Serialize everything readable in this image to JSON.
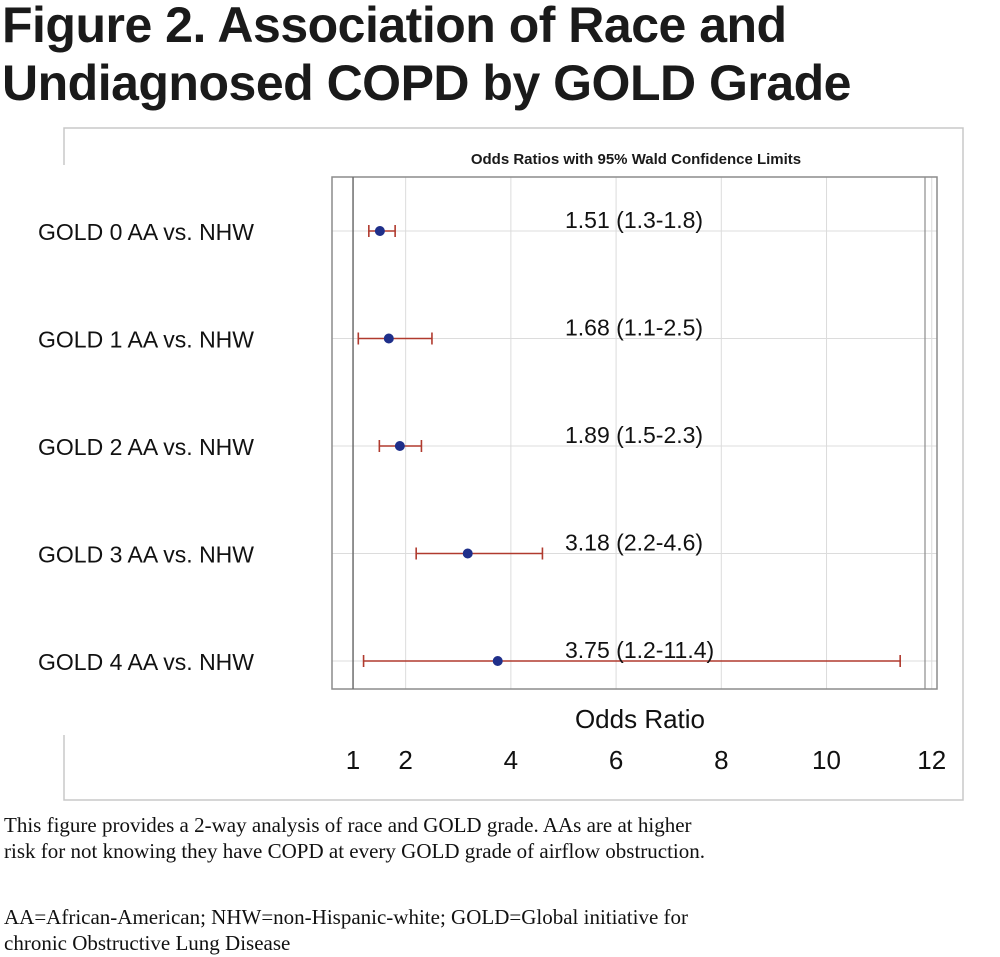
{
  "figure": {
    "title_line1": "Figure 2. Association of Race and",
    "title_line2": "Undiagnosed COPD by GOLD Grade",
    "caption_line1": "This figure provides a 2-way analysis of race and GOLD grade.  AAs are at higher",
    "caption_line2": "risk for not knowing they have COPD at every GOLD grade of airflow obstruction.",
    "abbrev_line1": "AA=African-American; NHW=non-Hispanic-white; GOLD=Global initiative for",
    "abbrev_line2": "chronic Obstructive Lung Disease"
  },
  "chart_data": {
    "type": "forest",
    "title": "Odds Ratios with 95% Wald Confidence Limits",
    "xlabel": "Odds Ratio",
    "x_ticks": [
      1,
      2,
      4,
      6,
      8,
      10,
      12
    ],
    "xlim": [
      0.6,
      12.1
    ],
    "reference_line": 1,
    "grid": true,
    "rows": [
      {
        "label": "GOLD 0 AA vs. NHW",
        "or": 1.51,
        "lo": 1.3,
        "hi": 1.8,
        "annotation": "1.51  (1.3-1.8)"
      },
      {
        "label": "GOLD 1 AA vs. NHW",
        "or": 1.68,
        "lo": 1.1,
        "hi": 2.5,
        "annotation": "1.68  (1.1-2.5)"
      },
      {
        "label": "GOLD 2 AA vs. NHW",
        "or": 1.89,
        "lo": 1.5,
        "hi": 2.3,
        "annotation": "1.89  (1.5-2.3)"
      },
      {
        "label": "GOLD 3 AA vs. NHW",
        "or": 3.18,
        "lo": 2.2,
        "hi": 4.6,
        "annotation": "3.18  (2.2-4.6)"
      },
      {
        "label": "GOLD 4 AA vs. NHW",
        "or": 3.75,
        "lo": 1.2,
        "hi": 11.4,
        "annotation": "3.75  (1.2-11.4)"
      }
    ],
    "colors": {
      "point": "#1f2f8a",
      "interval": "#b03a2e",
      "grid": "#dcdcdc",
      "frame": "#8c8c8c"
    }
  }
}
